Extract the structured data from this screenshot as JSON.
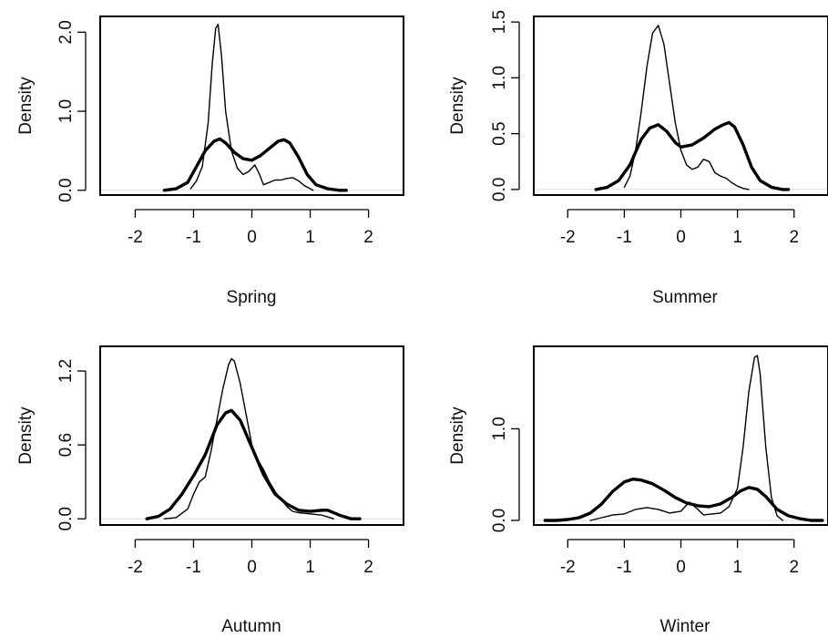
{
  "chart_data": [
    {
      "type": "line",
      "xlabel": "Spring",
      "ylabel": "Density",
      "xlim": [
        -2.6,
        2.6
      ],
      "ylim": [
        -0.06,
        2.2
      ],
      "xticks": [
        "-2",
        "-1",
        "0",
        "1",
        "2"
      ],
      "yticks": [
        "0.0",
        "1.0",
        "2.0"
      ],
      "series": [
        {
          "style": "thin",
          "x": [
            -1.05,
            -0.95,
            -0.85,
            -0.75,
            -0.68,
            -0.62,
            -0.58,
            -0.52,
            -0.45,
            -0.35,
            -0.25,
            -0.15,
            -0.05,
            0.05,
            0.12,
            0.2,
            0.3,
            0.4,
            0.5,
            0.6,
            0.7,
            0.8,
            0.9,
            1.05
          ],
          "y": [
            0.02,
            0.12,
            0.3,
            0.85,
            1.6,
            2.05,
            2.1,
            1.7,
            1.0,
            0.5,
            0.28,
            0.2,
            0.24,
            0.32,
            0.22,
            0.07,
            0.1,
            0.13,
            0.13,
            0.15,
            0.16,
            0.12,
            0.06,
            0.0
          ]
        },
        {
          "style": "thick",
          "x": [
            -1.5,
            -1.3,
            -1.1,
            -0.95,
            -0.8,
            -0.65,
            -0.55,
            -0.45,
            -0.3,
            -0.15,
            0.0,
            0.15,
            0.3,
            0.45,
            0.55,
            0.65,
            0.8,
            0.95,
            1.1,
            1.3,
            1.5,
            1.62
          ],
          "y": [
            0.0,
            0.02,
            0.1,
            0.3,
            0.5,
            0.62,
            0.65,
            0.6,
            0.48,
            0.4,
            0.38,
            0.44,
            0.53,
            0.62,
            0.64,
            0.6,
            0.42,
            0.2,
            0.07,
            0.02,
            0.0,
            0.0
          ]
        }
      ]
    },
    {
      "type": "line",
      "xlabel": "Summer",
      "ylabel": "Density",
      "xlim": [
        -2.6,
        2.6
      ],
      "ylim": [
        -0.05,
        1.55
      ],
      "xticks": [
        "-2",
        "-1",
        "0",
        "1",
        "2"
      ],
      "yticks": [
        "0.0",
        "0.5",
        "1.0",
        "1.5"
      ],
      "series": [
        {
          "style": "thin",
          "x": [
            -1.0,
            -0.9,
            -0.8,
            -0.7,
            -0.6,
            -0.5,
            -0.4,
            -0.3,
            -0.2,
            -0.1,
            0.0,
            0.1,
            0.2,
            0.3,
            0.4,
            0.5,
            0.6,
            0.7,
            0.8,
            0.9,
            1.0,
            1.1,
            1.2
          ],
          "y": [
            0.02,
            0.12,
            0.35,
            0.7,
            1.1,
            1.4,
            1.47,
            1.3,
            0.95,
            0.6,
            0.35,
            0.22,
            0.18,
            0.2,
            0.27,
            0.25,
            0.15,
            0.12,
            0.1,
            0.06,
            0.03,
            0.01,
            0.0
          ]
        },
        {
          "style": "thick",
          "x": [
            -1.5,
            -1.3,
            -1.1,
            -0.9,
            -0.7,
            -0.55,
            -0.4,
            -0.25,
            -0.1,
            0.0,
            0.2,
            0.4,
            0.6,
            0.75,
            0.85,
            0.95,
            1.1,
            1.25,
            1.4,
            1.6,
            1.8,
            1.9
          ],
          "y": [
            0.0,
            0.02,
            0.08,
            0.22,
            0.45,
            0.55,
            0.58,
            0.52,
            0.42,
            0.38,
            0.4,
            0.46,
            0.54,
            0.58,
            0.6,
            0.56,
            0.4,
            0.2,
            0.08,
            0.02,
            0.0,
            0.0
          ]
        }
      ]
    },
    {
      "type": "line",
      "xlabel": "Autumn",
      "ylabel": "Density",
      "xlim": [
        -2.6,
        2.6
      ],
      "ylim": [
        -0.05,
        1.4
      ],
      "xticks": [
        "-2",
        "-1",
        "0",
        "1",
        "2"
      ],
      "yticks": [
        "0.0",
        "0.6",
        "1.2"
      ],
      "series": [
        {
          "style": "thin",
          "x": [
            -1.5,
            -1.3,
            -1.1,
            -1.0,
            -0.9,
            -0.8,
            -0.7,
            -0.6,
            -0.5,
            -0.4,
            -0.35,
            -0.3,
            -0.2,
            -0.1,
            0.0,
            0.1,
            0.2,
            0.3,
            0.4,
            0.5,
            0.6,
            0.7,
            0.8,
            1.0,
            1.2,
            1.4
          ],
          "y": [
            0.0,
            0.01,
            0.08,
            0.2,
            0.3,
            0.34,
            0.55,
            0.8,
            1.05,
            1.25,
            1.3,
            1.28,
            1.1,
            0.85,
            0.6,
            0.48,
            0.4,
            0.3,
            0.22,
            0.16,
            0.1,
            0.06,
            0.05,
            0.04,
            0.03,
            0.0
          ]
        },
        {
          "style": "thick",
          "x": [
            -1.8,
            -1.6,
            -1.4,
            -1.2,
            -1.0,
            -0.8,
            -0.6,
            -0.45,
            -0.35,
            -0.2,
            0.0,
            0.2,
            0.4,
            0.6,
            0.8,
            1.0,
            1.2,
            1.3,
            1.5,
            1.7,
            1.85
          ],
          "y": [
            0.0,
            0.02,
            0.08,
            0.2,
            0.35,
            0.52,
            0.76,
            0.86,
            0.88,
            0.8,
            0.58,
            0.36,
            0.2,
            0.12,
            0.07,
            0.06,
            0.07,
            0.07,
            0.03,
            0.0,
            0.0
          ]
        }
      ]
    },
    {
      "type": "line",
      "xlabel": "Winter",
      "ylabel": "Density",
      "xlim": [
        -2.6,
        2.6
      ],
      "ylim": [
        -0.05,
        1.9
      ],
      "xticks": [
        "-2",
        "-1",
        "0",
        "1",
        "2"
      ],
      "yticks": [
        "0.0",
        "1.0"
      ],
      "series": [
        {
          "style": "thin",
          "x": [
            -1.6,
            -1.4,
            -1.2,
            -1.0,
            -0.8,
            -0.6,
            -0.4,
            -0.2,
            0.0,
            0.15,
            0.3,
            0.4,
            0.55,
            0.7,
            0.85,
            1.0,
            1.1,
            1.2,
            1.3,
            1.35,
            1.4,
            1.5,
            1.6,
            1.7,
            1.8
          ],
          "y": [
            0.0,
            0.03,
            0.06,
            0.07,
            0.12,
            0.14,
            0.12,
            0.08,
            0.1,
            0.2,
            0.12,
            0.06,
            0.07,
            0.08,
            0.15,
            0.35,
            0.8,
            1.4,
            1.78,
            1.8,
            1.6,
            0.8,
            0.25,
            0.05,
            0.0
          ]
        },
        {
          "style": "thick",
          "x": [
            -2.4,
            -2.2,
            -2.0,
            -1.8,
            -1.6,
            -1.4,
            -1.2,
            -1.0,
            -0.85,
            -0.7,
            -0.5,
            -0.3,
            -0.1,
            0.1,
            0.3,
            0.5,
            0.7,
            0.9,
            1.05,
            1.2,
            1.35,
            1.5,
            1.7,
            1.9,
            2.1,
            2.3,
            2.5
          ],
          "y": [
            0.0,
            0.0,
            0.01,
            0.03,
            0.08,
            0.18,
            0.32,
            0.42,
            0.45,
            0.44,
            0.4,
            0.33,
            0.25,
            0.19,
            0.16,
            0.15,
            0.18,
            0.25,
            0.32,
            0.36,
            0.34,
            0.26,
            0.12,
            0.05,
            0.02,
            0.0,
            0.0
          ]
        }
      ]
    }
  ]
}
